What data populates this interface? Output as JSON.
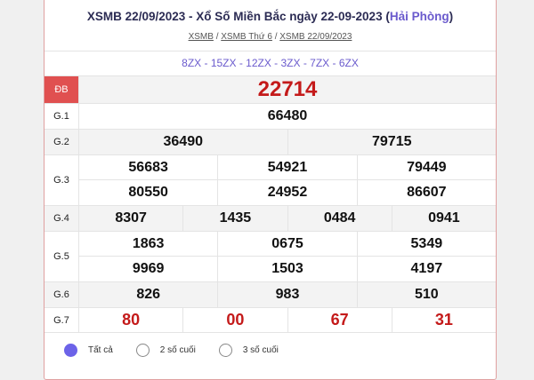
{
  "header": {
    "title_main": "XSMB 22/09/2023 - Xổ Số Miền Bắc ngày 22-09-2023 (",
    "title_region": "Hải Phòng",
    "title_end": ")",
    "breadcrumbs": [
      "XSMB",
      "XSMB Thứ 6",
      "XSMB 22/09/2023"
    ],
    "sep": "/"
  },
  "codes": "8ZX - 15ZX - 12ZX - 3ZX - 7ZX - 6ZX",
  "prizes": {
    "db": {
      "label": "ĐB",
      "values": [
        "22714"
      ]
    },
    "g1": {
      "label": "G.1",
      "values": [
        "66480"
      ]
    },
    "g2": {
      "label": "G.2",
      "values": [
        "36490",
        "79715"
      ]
    },
    "g3": {
      "label": "G.3",
      "values": [
        "56683",
        "54921",
        "79449",
        "80550",
        "24952",
        "86607"
      ]
    },
    "g4": {
      "label": "G.4",
      "values": [
        "8307",
        "1435",
        "0484",
        "0941"
      ]
    },
    "g5": {
      "label": "G.5",
      "values": [
        "1863",
        "0675",
        "5349",
        "9969",
        "1503",
        "4197"
      ]
    },
    "g6": {
      "label": "G.6",
      "values": [
        "826",
        "983",
        "510"
      ]
    },
    "g7": {
      "label": "G.7",
      "values": [
        "80",
        "00",
        "67",
        "31"
      ]
    }
  },
  "filter": {
    "options": [
      "Tất cả",
      "2 số cuối",
      "3 số cuối"
    ],
    "selected": "Tất cả"
  },
  "colors": {
    "accent": "#6c63e8",
    "red": "#c41a1a",
    "db_label_bg": "#e05050"
  }
}
